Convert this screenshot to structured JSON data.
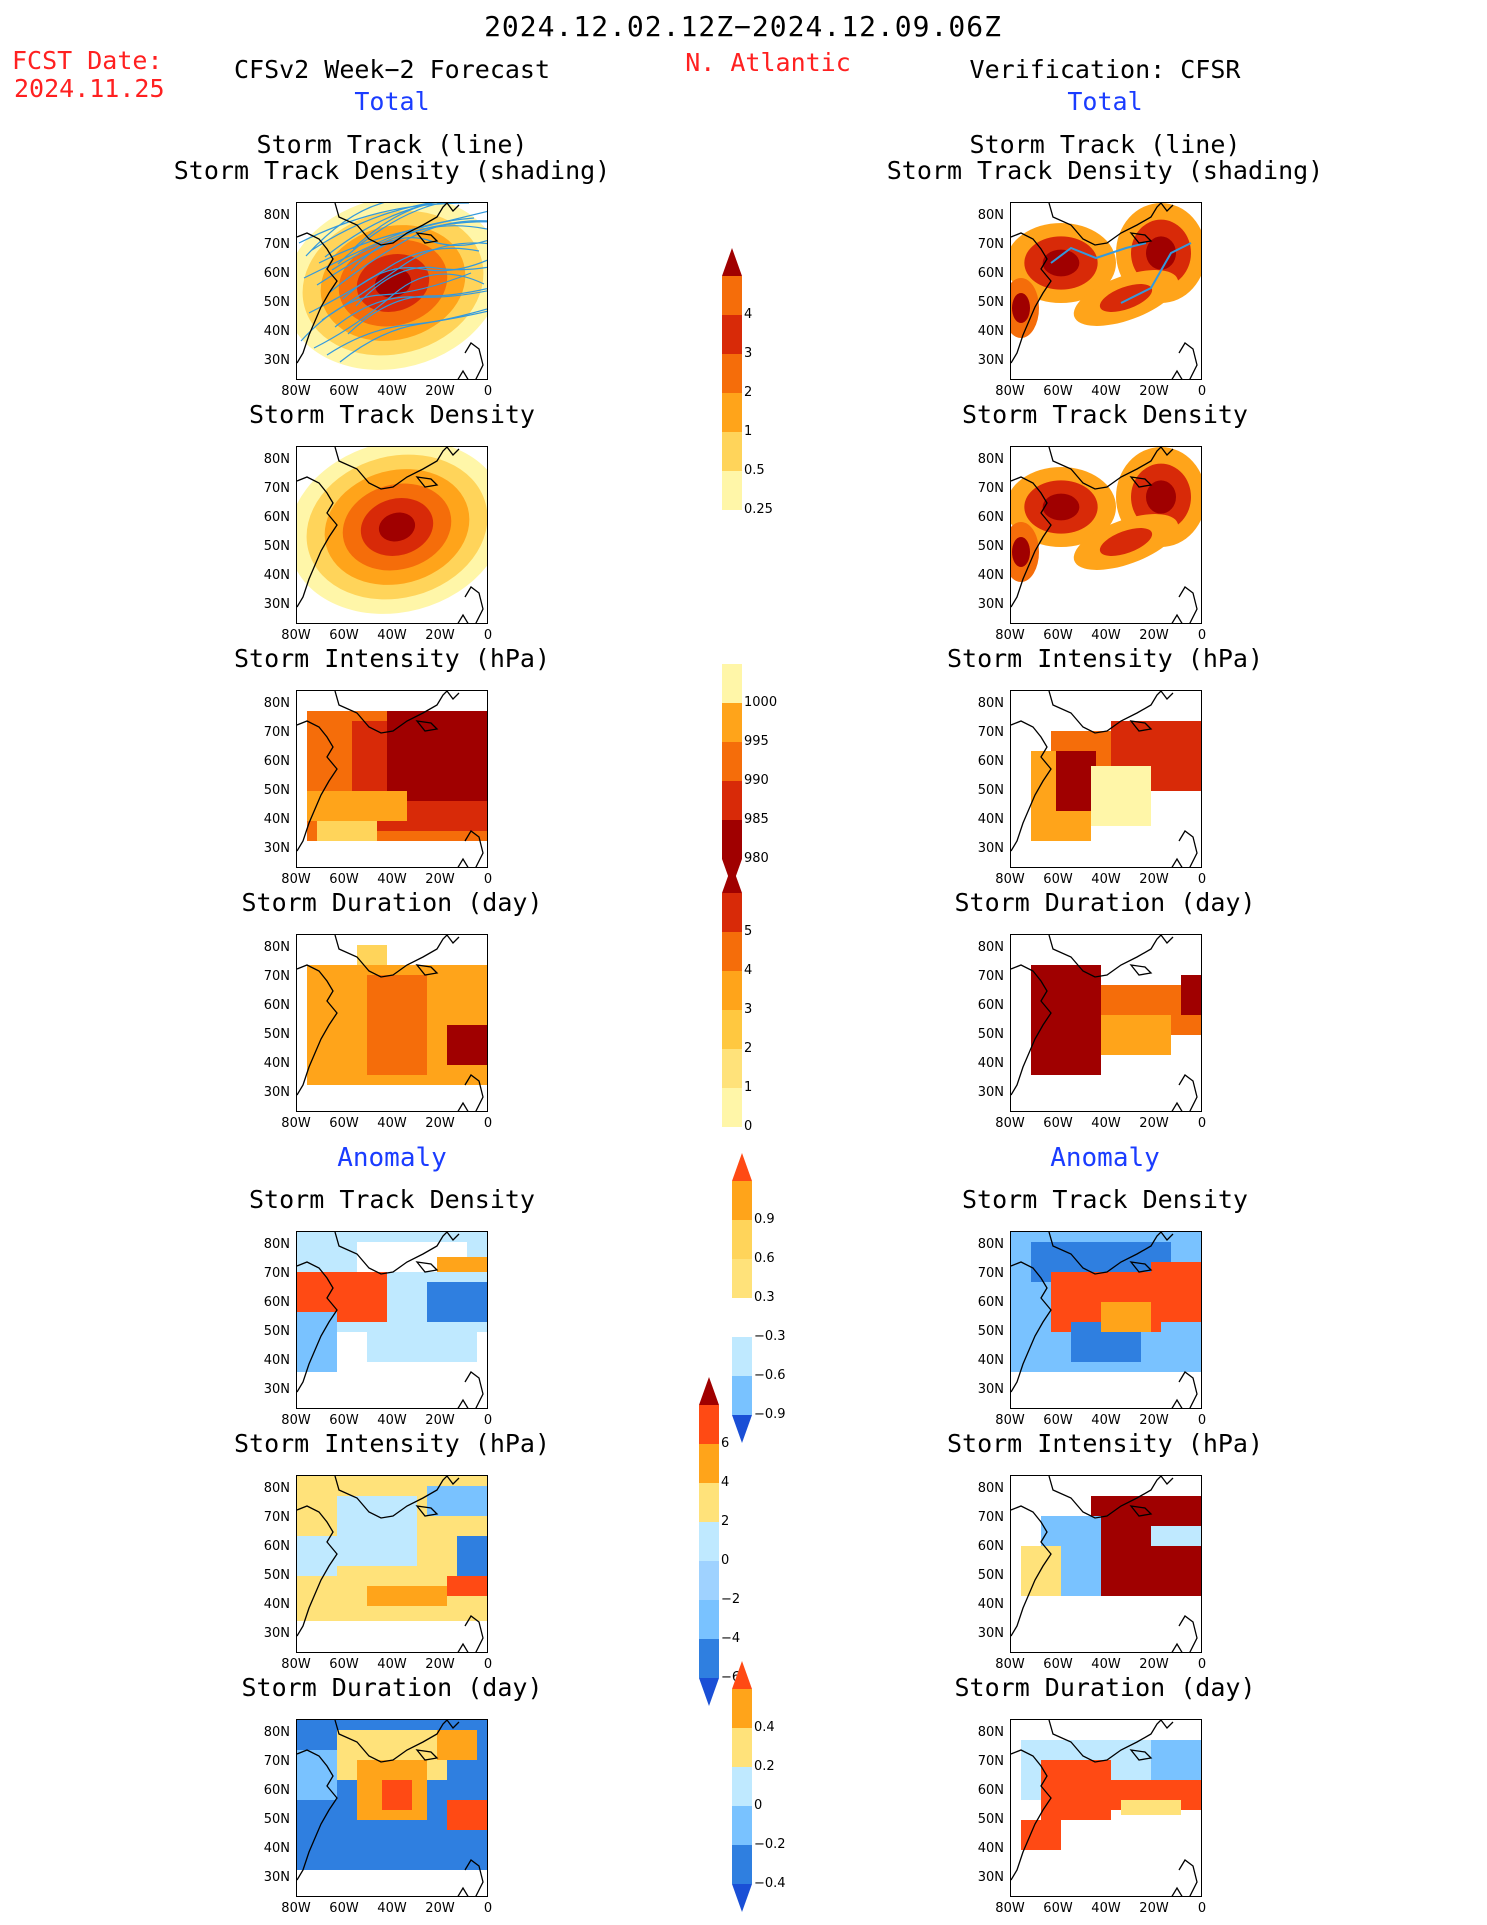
{
  "header": {
    "title": "2024.12.02.12Z−2024.12.09.06Z",
    "fcst_label": "FCST Date:",
    "fcst_date": "2024.11.25",
    "forecast_name": "CFSv2 Week−2 Forecast",
    "region": "N. Atlantic",
    "verification": "Verification: CFSR",
    "total_left": "Total",
    "total_right": "Total",
    "anomaly_left": "Anomaly",
    "anomaly_right": "Anomaly"
  },
  "panels": {
    "track_line": "Storm Track (line)",
    "track_density_shading": "Storm Track Density (shading)",
    "track_density": "Storm Track Density",
    "intensity": "Storm Intensity (hPa)",
    "duration": "Storm Duration (day)"
  },
  "axes": {
    "lat_ticks": [
      "80N",
      "70N",
      "60N",
      "50N",
      "40N",
      "30N"
    ],
    "lon_ticks": [
      "80W",
      "60W",
      "40W",
      "20W",
      "0"
    ]
  },
  "colorbars": {
    "density": [
      "4",
      "3",
      "2",
      "1",
      "0.5",
      "0.25"
    ],
    "intensity": [
      "1000",
      "995",
      "990",
      "985",
      "980"
    ],
    "duration": [
      "5",
      "4",
      "3",
      "2",
      "1",
      "0"
    ],
    "density_anom": [
      "0.9",
      "0.6",
      "0.3",
      "−0.3",
      "−0.6",
      "−0.9"
    ],
    "intensity_anom": [
      "6",
      "4",
      "2",
      "0",
      "−2",
      "−4",
      "−6"
    ],
    "duration_anom": [
      "0.4",
      "0.2",
      "0",
      "−0.2",
      "−0.4"
    ]
  },
  "colors": {
    "title_red": "#ff2020",
    "label_blue": "#1a3cff",
    "track_line": "#3399dd",
    "scale_warm": [
      "#fff6a8",
      "#ffd45a",
      "#ffa41a",
      "#f56d0a",
      "#d82a08",
      "#a00000"
    ],
    "scale_anom": [
      "#ff4a14",
      "#ffa41a",
      "#ffe27a",
      "#ffffff",
      "#bfe9ff",
      "#79c2ff",
      "#2f7fe0",
      "#1a4fd6"
    ]
  }
}
